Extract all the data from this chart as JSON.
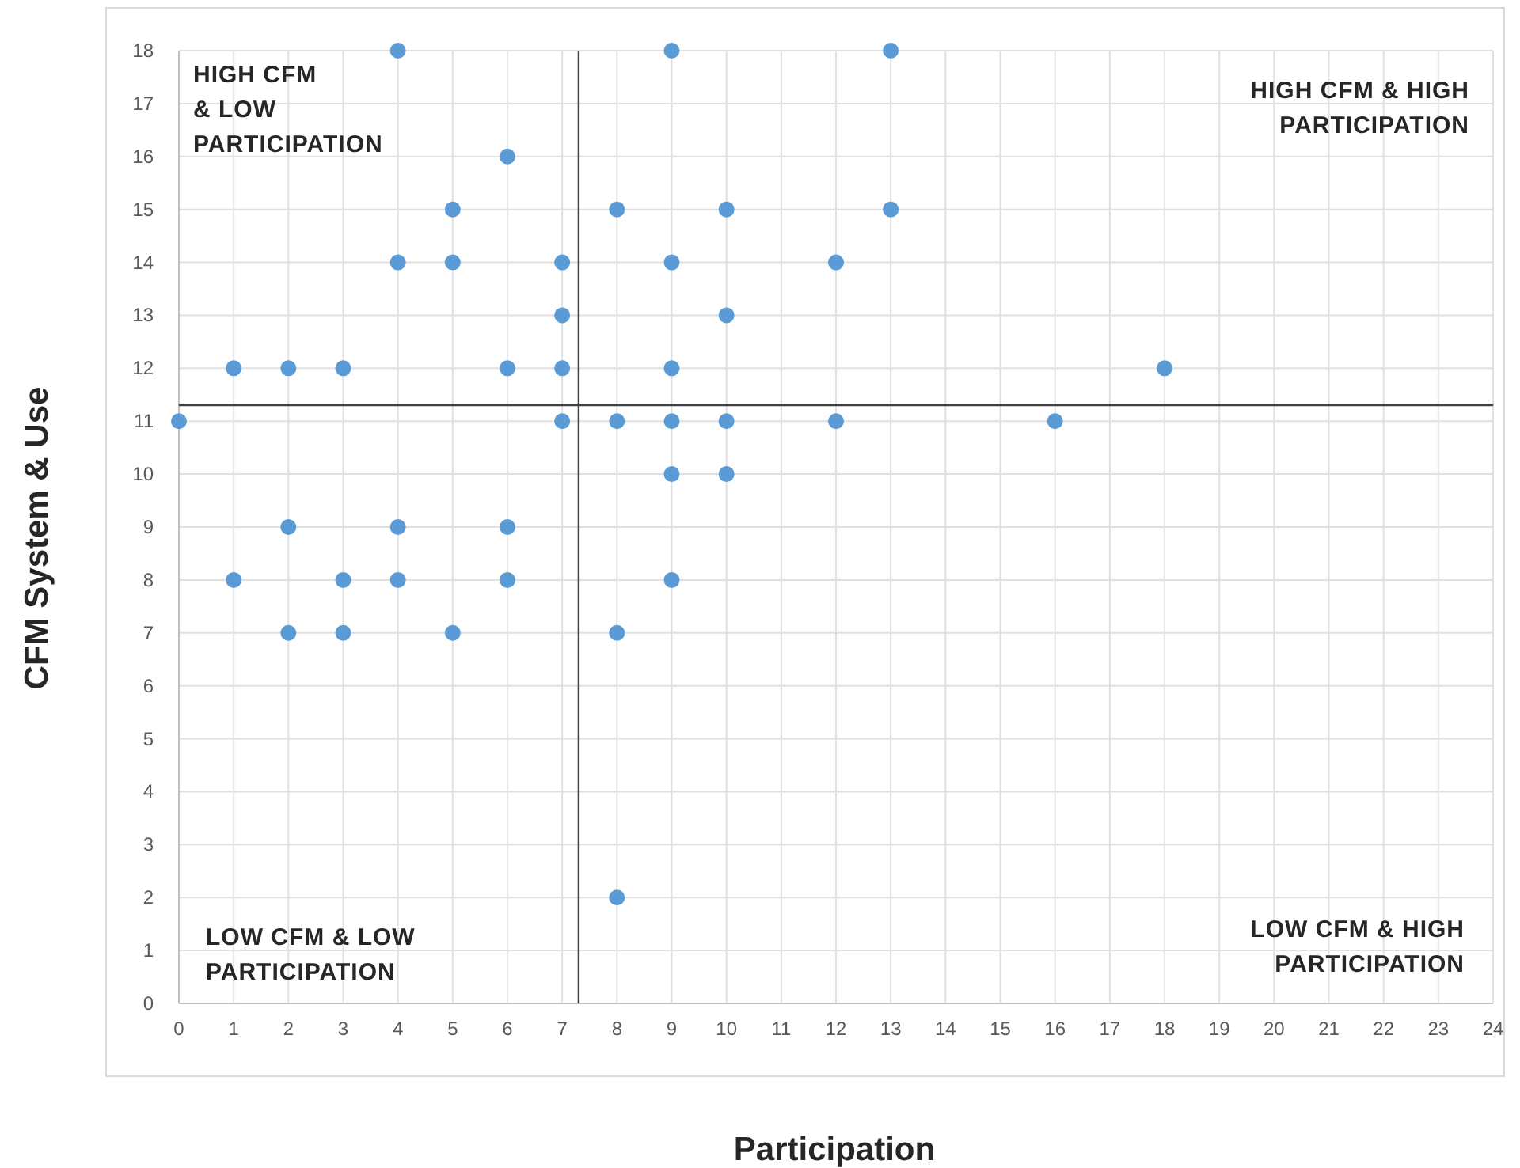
{
  "chart_data": {
    "type": "scatter",
    "xlabel": "Participation",
    "ylabel": "CFM System & Use",
    "x": [
      4,
      9,
      13,
      6,
      5,
      8,
      10,
      13,
      4,
      5,
      7,
      9,
      12,
      7,
      10,
      1,
      2,
      3,
      6,
      7,
      9,
      18,
      0,
      7,
      8,
      9,
      10,
      12,
      16,
      9,
      10,
      2,
      4,
      6,
      1,
      3,
      4,
      6,
      9,
      2,
      3,
      5,
      8,
      8
    ],
    "series": [
      {
        "color": "#5b9bd5",
        "values": [
          18,
          18,
          18,
          16,
          15,
          15,
          15,
          15,
          14,
          14,
          14,
          14,
          14,
          13,
          13,
          12,
          12,
          12,
          12,
          12,
          12,
          12,
          11,
          11,
          11,
          11,
          11,
          11,
          11,
          10,
          10,
          9,
          9,
          9,
          8,
          8,
          8,
          8,
          8,
          7,
          7,
          7,
          7,
          2
        ]
      }
    ],
    "xlim": [
      0,
      24
    ],
    "xticks": [
      0,
      1,
      2,
      3,
      4,
      5,
      6,
      7,
      8,
      9,
      10,
      11,
      12,
      13,
      14,
      15,
      16,
      17,
      18,
      19,
      20,
      21,
      22,
      23,
      24
    ],
    "ylim": [
      0,
      18
    ],
    "yticks": [
      0,
      1,
      2,
      3,
      4,
      5,
      6,
      7,
      8,
      9,
      10,
      11,
      12,
      13,
      14,
      15,
      16,
      17,
      18
    ],
    "grid": true,
    "marker": "circle",
    "ref_lines": [
      {
        "axis": "x",
        "value": 7.3,
        "color": "#404040"
      },
      {
        "axis": "y",
        "value": 11.3,
        "color": "#404040"
      }
    ],
    "annotations": [
      "HIGH CFM\n& LOW\nPARTICIPATION",
      "HIGH CFM & HIGH\nPARTICIPATION",
      "LOW CFM & LOW\nPARTICIPATION",
      "LOW CFM & HIGH\nPARTICIPATION"
    ]
  }
}
